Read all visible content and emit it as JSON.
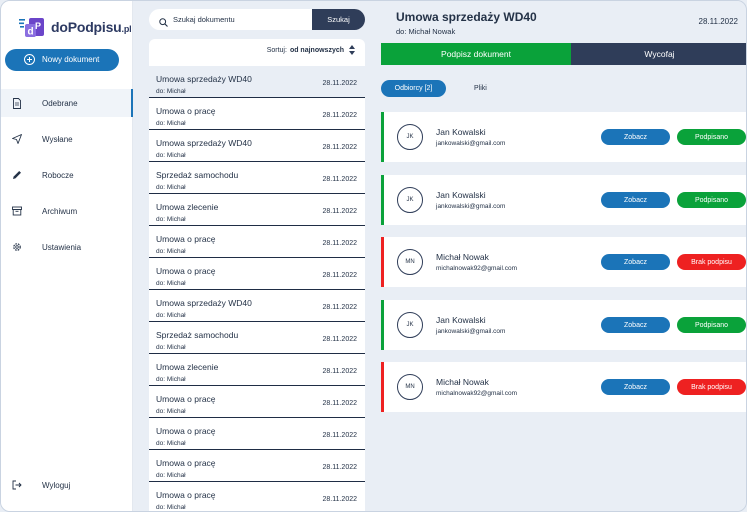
{
  "app": {
    "logo_name": "doPodpisu",
    "logo_tld": ".pl",
    "new_document_label": "Nowy dokument"
  },
  "nav": {
    "items": [
      {
        "label": "Odebrane",
        "icon": "document-icon"
      },
      {
        "label": "Wysłane",
        "icon": "send-icon"
      },
      {
        "label": "Robocze",
        "icon": "pencil-icon"
      },
      {
        "label": "Archiwum",
        "icon": "archive-icon"
      },
      {
        "label": "Ustawienia",
        "icon": "gear-icon"
      }
    ],
    "active_index": 0,
    "logout_label": "Wyloguj"
  },
  "search": {
    "placeholder": "Szukaj dokumentu",
    "button_label": "Szukaj"
  },
  "sort": {
    "label": "Sortuj:",
    "value": "od najnowszych"
  },
  "documents": [
    {
      "title": "Umowa sprzedaży WD40",
      "from": "do: Michał",
      "date": "28.11.2022"
    },
    {
      "title": "Umowa o pracę",
      "from": "do: Michał",
      "date": "28.11.2022"
    },
    {
      "title": "Umowa sprzedaży WD40",
      "from": "do: Michał",
      "date": "28.11.2022"
    },
    {
      "title": "Sprzedaż samochodu",
      "from": "do: Michał",
      "date": "28.11.2022"
    },
    {
      "title": "Umowa zlecenie",
      "from": "do: Michał",
      "date": "28.11.2022"
    },
    {
      "title": "Umowa o pracę",
      "from": "do: Michał",
      "date": "28.11.2022"
    },
    {
      "title": "Umowa o pracę",
      "from": "do: Michał",
      "date": "28.11.2022"
    },
    {
      "title": "Umowa sprzedaży WD40",
      "from": "do: Michał",
      "date": "28.11.2022"
    },
    {
      "title": "Sprzedaż samochodu",
      "from": "do: Michał",
      "date": "28.11.2022"
    },
    {
      "title": "Umowa zlecenie",
      "from": "do: Michał",
      "date": "28.11.2022"
    },
    {
      "title": "Umowa o pracę",
      "from": "do: Michał",
      "date": "28.11.2022"
    },
    {
      "title": "Umowa o pracę",
      "from": "do: Michał",
      "date": "28.11.2022"
    },
    {
      "title": "Umowa o pracę",
      "from": "do: Michał",
      "date": "28.11.2022"
    },
    {
      "title": "Umowa o pracę",
      "from": "do: Michał",
      "date": "28.11.2022"
    }
  ],
  "detail": {
    "title": "Umowa sprzedaży WD40",
    "recipient": "do: Michał Nowak",
    "date": "28.11.2022",
    "sign_label": "Podpisz dokument",
    "withdraw_label": "Wycofaj",
    "tab_recipients": "Odbiorcy [2]",
    "tab_files": "Pliki",
    "see_label": "Zobacz",
    "recipients": [
      {
        "initials": "JK",
        "name": "Jan Kowalski",
        "email": "jankowalski@gmail.com",
        "status": "Podpisano",
        "signed": true
      },
      {
        "initials": "JK",
        "name": "Jan Kowalski",
        "email": "jankowalski@gmail.com",
        "status": "Podpisano",
        "signed": true
      },
      {
        "initials": "MN",
        "name": "Michał Nowak",
        "email": "michalnowak92@gmail.com",
        "status": "Brak podpisu",
        "signed": false
      },
      {
        "initials": "JK",
        "name": "Jan Kowalski",
        "email": "jankowalski@gmail.com",
        "status": "Podpisano",
        "signed": true
      },
      {
        "initials": "MN",
        "name": "Michał Nowak",
        "email": "michalnowak92@gmail.com",
        "status": "Brak podpisu",
        "signed": false
      }
    ]
  },
  "colors": {
    "primary": "#1b74b8",
    "dark": "#2f3d59",
    "success": "#0aa23a",
    "danger": "#ee2121",
    "logo_purple": "#6b45c9"
  }
}
